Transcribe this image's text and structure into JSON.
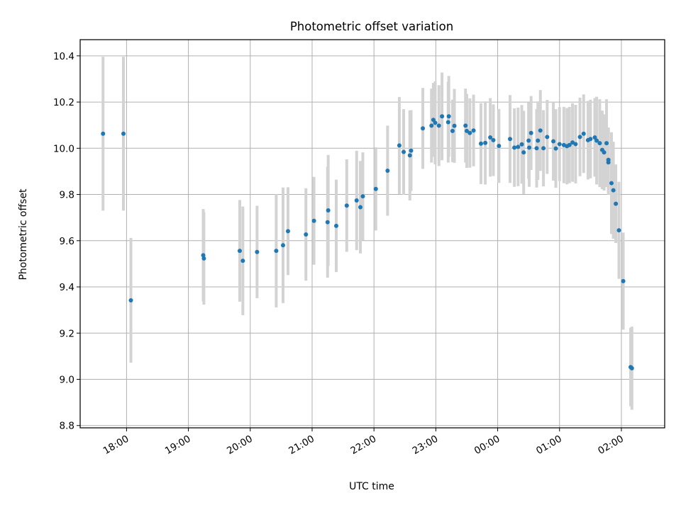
{
  "chart_data": {
    "type": "scatter",
    "title": "Photometric offset variation",
    "xlabel": "UTC time",
    "ylabel": "Photometric offset",
    "x_unit": "hours (UTC, continuing past midnight)",
    "xlim": [
      17.25,
      26.7
    ],
    "ylim": [
      8.79,
      10.47
    ],
    "grid": true,
    "legend": "none",
    "colors": {
      "marker": "#1f77b4",
      "errorbar": "#d3d3d3",
      "grid": "#b0b0b0",
      "axes": "#000000"
    },
    "x_ticks": [
      {
        "value": 18,
        "label": "18:00"
      },
      {
        "value": 19,
        "label": "19:00"
      },
      {
        "value": 20,
        "label": "20:00"
      },
      {
        "value": 21,
        "label": "21:00"
      },
      {
        "value": 22,
        "label": "22:00"
      },
      {
        "value": 23,
        "label": "23:00"
      },
      {
        "value": 24,
        "label": "00:00"
      },
      {
        "value": 25,
        "label": "01:00"
      },
      {
        "value": 26,
        "label": "02:00"
      }
    ],
    "y_ticks": [
      {
        "value": 8.8,
        "label": "8.8"
      },
      {
        "value": 9.0,
        "label": "9.0"
      },
      {
        "value": 9.2,
        "label": "9.2"
      },
      {
        "value": 9.4,
        "label": "9.4"
      },
      {
        "value": 9.6,
        "label": "9.6"
      },
      {
        "value": 9.8,
        "label": "9.8"
      },
      {
        "value": 10.0,
        "label": "10.0"
      },
      {
        "value": 10.2,
        "label": "10.2"
      },
      {
        "value": 10.4,
        "label": "10.4"
      }
    ],
    "points": [
      [
        17.62,
        10.063,
        0.333
      ],
      [
        17.95,
        10.063,
        0.333
      ],
      [
        18.07,
        9.342,
        0.27
      ],
      [
        19.24,
        9.537,
        0.2
      ],
      [
        19.25,
        9.523,
        0.2
      ],
      [
        19.83,
        9.556,
        0.22
      ],
      [
        19.88,
        9.513,
        0.235
      ],
      [
        20.11,
        9.551,
        0.2
      ],
      [
        20.42,
        9.556,
        0.245
      ],
      [
        20.53,
        9.58,
        0.25
      ],
      [
        20.61,
        9.641,
        0.19
      ],
      [
        20.9,
        9.627,
        0.2
      ],
      [
        21.03,
        9.686,
        0.19
      ],
      [
        21.25,
        9.68,
        0.24
      ],
      [
        21.26,
        9.731,
        0.24
      ],
      [
        21.39,
        9.664,
        0.2
      ],
      [
        21.56,
        9.752,
        0.2
      ],
      [
        21.72,
        9.774,
        0.215
      ],
      [
        21.78,
        9.745,
        0.2
      ],
      [
        21.82,
        9.792,
        0.19
      ],
      [
        22.03,
        9.824,
        0.18
      ],
      [
        22.22,
        9.903,
        0.195
      ],
      [
        22.41,
        10.012,
        0.21
      ],
      [
        22.48,
        9.984,
        0.185
      ],
      [
        22.58,
        9.969,
        0.195
      ],
      [
        22.6,
        9.99,
        0.175
      ],
      [
        22.79,
        10.086,
        0.175
      ],
      [
        22.93,
        10.098,
        0.16
      ],
      [
        22.96,
        10.123,
        0.16
      ],
      [
        22.99,
        10.11,
        0.18
      ],
      [
        23.05,
        10.098,
        0.175
      ],
      [
        23.1,
        10.138,
        0.19
      ],
      [
        23.2,
        10.113,
        0.175
      ],
      [
        23.21,
        10.138,
        0.175
      ],
      [
        23.27,
        10.075,
        0.135
      ],
      [
        23.3,
        10.097,
        0.16
      ],
      [
        23.48,
        10.098,
        0.16
      ],
      [
        23.5,
        10.075,
        0.16
      ],
      [
        23.55,
        10.066,
        0.15
      ],
      [
        23.61,
        10.077,
        0.155
      ],
      [
        23.73,
        10.02,
        0.175
      ],
      [
        23.8,
        10.023,
        0.18
      ],
      [
        23.88,
        10.047,
        0.17
      ],
      [
        23.93,
        10.035,
        0.155
      ],
      [
        24.02,
        10.01,
        0.16
      ],
      [
        24.2,
        10.04,
        0.19
      ],
      [
        24.27,
        10.003,
        0.17
      ],
      [
        24.33,
        10.006,
        0.17
      ],
      [
        24.39,
        10.017,
        0.17
      ],
      [
        24.42,
        9.982,
        0.18
      ],
      [
        24.5,
        10.033,
        0.165
      ],
      [
        24.51,
        10.003,
        0.17
      ],
      [
        24.54,
        10.066,
        0.16
      ],
      [
        24.63,
        10.0,
        0.17
      ],
      [
        24.65,
        10.033,
        0.17
      ],
      [
        24.69,
        10.077,
        0.175
      ],
      [
        24.74,
        10.0,
        0.165
      ],
      [
        24.8,
        10.049,
        0.16
      ],
      [
        24.9,
        10.03,
        0.17
      ],
      [
        24.94,
        9.999,
        0.17
      ],
      [
        25.0,
        10.018,
        0.16
      ],
      [
        25.07,
        10.014,
        0.165
      ],
      [
        25.12,
        10.009,
        0.165
      ],
      [
        25.16,
        10.014,
        0.165
      ],
      [
        25.21,
        10.025,
        0.17
      ],
      [
        25.26,
        10.018,
        0.17
      ],
      [
        25.33,
        10.049,
        0.17
      ],
      [
        25.39,
        10.063,
        0.17
      ],
      [
        25.46,
        10.035,
        0.17
      ],
      [
        25.5,
        10.04,
        0.17
      ],
      [
        25.57,
        10.047,
        0.17
      ],
      [
        25.6,
        10.033,
        0.19
      ],
      [
        25.65,
        10.022,
        0.19
      ],
      [
        25.69,
        9.993,
        0.17
      ],
      [
        25.72,
        9.982,
        0.165
      ],
      [
        25.76,
        10.022,
        0.19
      ],
      [
        25.79,
        9.939,
        0.14
      ],
      [
        25.79,
        9.95,
        0.14
      ],
      [
        25.84,
        9.849,
        0.22
      ],
      [
        25.87,
        9.818,
        0.21
      ],
      [
        25.91,
        9.76,
        0.17
      ],
      [
        25.96,
        9.645,
        0.21
      ],
      [
        26.03,
        9.425,
        0.21
      ],
      [
        26.15,
        9.053,
        0.17
      ],
      [
        26.17,
        9.048,
        0.18
      ]
    ]
  }
}
